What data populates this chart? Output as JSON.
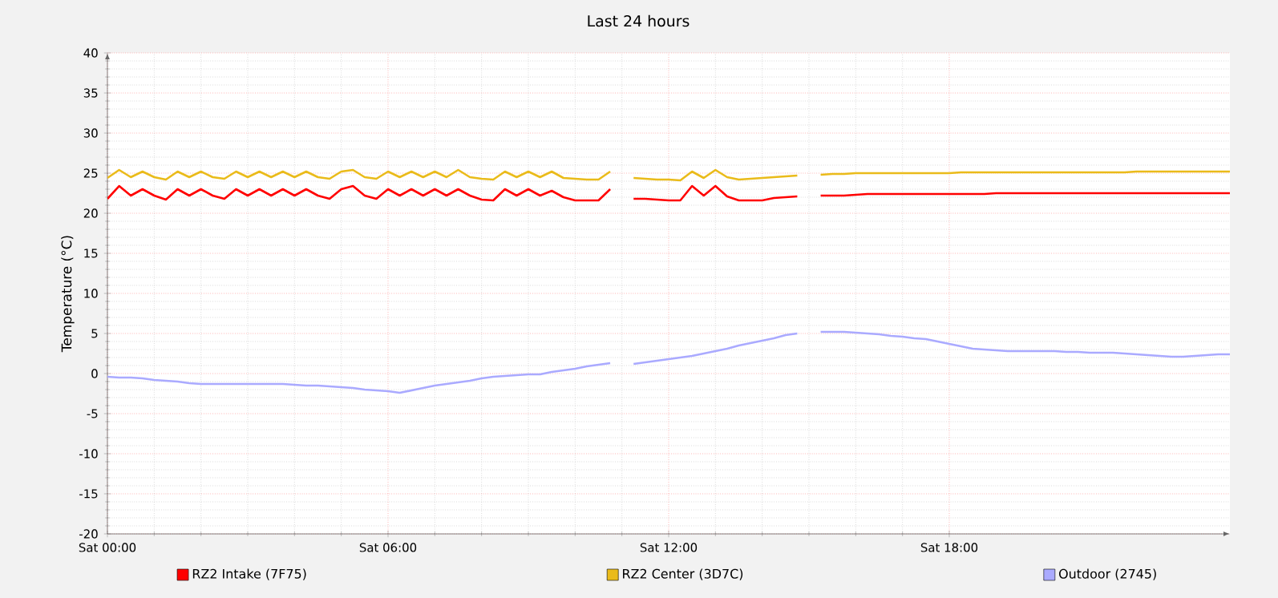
{
  "chart_data": {
    "type": "line",
    "title": "Last 24 hours",
    "ylabel": "Temperature (°C)",
    "categories": [
      "Sat 00:00",
      null,
      null,
      null,
      null,
      null,
      null,
      null,
      null,
      null,
      null,
      null,
      null,
      null,
      null,
      null,
      null,
      null,
      null,
      null,
      null,
      null,
      null,
      null,
      "Sat 06:00",
      null,
      null,
      null,
      null,
      null,
      null,
      null,
      null,
      null,
      null,
      null,
      null,
      null,
      null,
      null,
      null,
      null,
      null,
      null,
      null,
      null,
      null,
      null,
      "Sat 12:00",
      null,
      null,
      null,
      null,
      null,
      null,
      null,
      null,
      null,
      null,
      null,
      null,
      null,
      null,
      null,
      null,
      null,
      null,
      null,
      null,
      null,
      null,
      null,
      "Sat 18:00",
      null,
      null,
      null,
      null,
      null,
      null,
      null,
      null,
      null,
      null,
      null,
      null,
      null,
      null,
      null,
      null,
      null,
      null,
      null,
      null,
      null,
      null,
      null,
      null
    ],
    "ylim": [
      -20,
      40
    ],
    "yticks": [
      -20,
      -15,
      -10,
      -5,
      0,
      5,
      10,
      15,
      20,
      25,
      30,
      35,
      40
    ],
    "grid": true,
    "legend": "bottom",
    "marker": "none",
    "line_style": "solid",
    "series": [
      {
        "name": "RZ2 Intake (7F75)",
        "color": "#ff0000",
        "values": [
          21.8,
          23.4,
          22.2,
          23.0,
          22.2,
          21.7,
          23.0,
          22.2,
          23.0,
          22.2,
          21.8,
          23.0,
          22.2,
          23.0,
          22.2,
          23.0,
          22.2,
          23.0,
          22.2,
          21.8,
          23.0,
          23.4,
          22.2,
          21.8,
          23.0,
          22.2,
          23.0,
          22.2,
          23.0,
          22.2,
          23.0,
          22.2,
          21.7,
          21.6,
          23.0,
          22.2,
          23.0,
          22.2,
          22.8,
          22.0,
          21.6,
          21.6,
          21.6,
          23.0,
          null,
          21.8,
          21.8,
          21.7,
          21.6,
          21.6,
          23.4,
          22.2,
          23.4,
          22.1,
          21.6,
          21.6,
          21.6,
          21.9,
          22.0,
          22.1,
          null,
          22.2,
          22.2,
          22.2,
          22.3,
          22.4,
          22.4,
          22.4,
          22.4,
          22.4,
          22.4,
          22.4,
          22.4,
          22.4,
          22.4,
          22.4,
          22.5,
          22.5,
          22.5,
          22.5,
          22.5,
          22.5,
          22.5,
          22.5,
          22.5,
          22.5,
          22.5,
          22.5,
          22.5,
          22.5,
          22.5,
          22.5,
          22.5,
          22.5,
          22.5,
          22.5,
          22.5
        ]
      },
      {
        "name": "RZ2 Center (3D7C)",
        "color": "#eabb1a",
        "values": [
          24.4,
          25.4,
          24.5,
          25.2,
          24.5,
          24.2,
          25.2,
          24.5,
          25.2,
          24.5,
          24.3,
          25.2,
          24.5,
          25.2,
          24.5,
          25.2,
          24.5,
          25.2,
          24.5,
          24.3,
          25.2,
          25.4,
          24.5,
          24.3,
          25.2,
          24.5,
          25.2,
          24.5,
          25.2,
          24.5,
          25.4,
          24.5,
          24.3,
          24.2,
          25.2,
          24.5,
          25.2,
          24.5,
          25.2,
          24.4,
          24.3,
          24.2,
          24.2,
          25.2,
          null,
          24.4,
          24.3,
          24.2,
          24.2,
          24.1,
          25.2,
          24.4,
          25.4,
          24.5,
          24.2,
          24.3,
          24.4,
          24.5,
          24.6,
          24.7,
          null,
          24.8,
          24.9,
          24.9,
          25.0,
          25.0,
          25.0,
          25.0,
          25.0,
          25.0,
          25.0,
          25.0,
          25.0,
          25.1,
          25.1,
          25.1,
          25.1,
          25.1,
          25.1,
          25.1,
          25.1,
          25.1,
          25.1,
          25.1,
          25.1,
          25.1,
          25.1,
          25.1,
          25.2,
          25.2,
          25.2,
          25.2,
          25.2,
          25.2,
          25.2,
          25.2,
          25.2
        ]
      },
      {
        "name": "Outdoor (2745)",
        "color": "#aaaaff",
        "values": [
          -0.4,
          -0.5,
          -0.5,
          -0.6,
          -0.8,
          -0.9,
          -1.0,
          -1.2,
          -1.3,
          -1.3,
          -1.3,
          -1.3,
          -1.3,
          -1.3,
          -1.3,
          -1.3,
          -1.4,
          -1.5,
          -1.5,
          -1.6,
          -1.7,
          -1.8,
          -2.0,
          -2.1,
          -2.2,
          -2.4,
          -2.1,
          -1.8,
          -1.5,
          -1.3,
          -1.1,
          -0.9,
          -0.6,
          -0.4,
          -0.3,
          -0.2,
          -0.1,
          -0.1,
          0.2,
          0.4,
          0.6,
          0.9,
          1.1,
          1.3,
          null,
          1.2,
          1.4,
          1.6,
          1.8,
          2.0,
          2.2,
          2.5,
          2.8,
          3.1,
          3.5,
          3.8,
          4.1,
          4.4,
          4.8,
          5.0,
          null,
          5.2,
          5.2,
          5.2,
          5.1,
          5.0,
          4.9,
          4.7,
          4.6,
          4.4,
          4.3,
          4.0,
          3.7,
          3.4,
          3.1,
          3.0,
          2.9,
          2.8,
          2.8,
          2.8,
          2.8,
          2.8,
          2.7,
          2.7,
          2.6,
          2.6,
          2.6,
          2.5,
          2.4,
          2.3,
          2.2,
          2.1,
          2.1,
          2.2,
          2.3,
          2.4,
          2.4
        ]
      }
    ]
  }
}
